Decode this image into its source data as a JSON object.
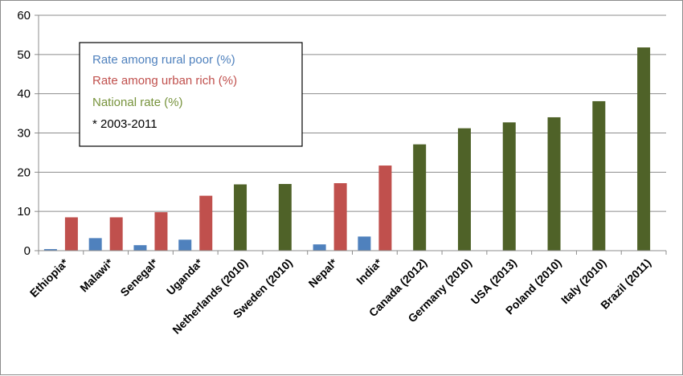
{
  "chart_data": {
    "type": "bar",
    "ylim": [
      0,
      60
    ],
    "yticks": [
      0,
      10,
      20,
      30,
      40,
      50,
      60
    ],
    "grid": true,
    "categories": [
      "Ethiopia*",
      "Malawi*",
      "Senegal*",
      "Uganda*",
      "Netherlands (2010)",
      "Sweden (2010)",
      "Nepal*",
      "India*",
      "Canada (2012)",
      "Germany (2010)",
      "USA (2013)",
      "Poland (2010)",
      "Italy (2010)",
      "Brazil (2011)"
    ],
    "series": [
      {
        "name": "Rate among rural poor (%)",
        "color": "#4f81bd",
        "values": [
          0.4,
          3.2,
          1.4,
          2.8,
          null,
          null,
          1.6,
          3.6,
          null,
          null,
          null,
          null,
          null,
          null
        ]
      },
      {
        "name": "Rate among urban rich (%)",
        "color": "#c0504d",
        "values": [
          8.5,
          8.5,
          9.8,
          14.0,
          null,
          null,
          17.2,
          21.7,
          null,
          null,
          null,
          null,
          null,
          null
        ]
      },
      {
        "name": "National rate (%)",
        "color": "#4f6228",
        "values": [
          null,
          null,
          null,
          null,
          16.9,
          17.0,
          null,
          null,
          27.1,
          31.2,
          32.7,
          34.0,
          38.1,
          51.8
        ]
      }
    ],
    "legend": {
      "position": "top-left",
      "entries": [
        {
          "text": "Rate among rural poor (%)",
          "color": "#4f81bd"
        },
        {
          "text": "Rate among urban rich (%)",
          "color": "#c0504d"
        },
        {
          "text": "National rate (%)",
          "color": "#77933c"
        },
        {
          "text": "* 2003-2011",
          "color": "#000000"
        }
      ]
    }
  }
}
